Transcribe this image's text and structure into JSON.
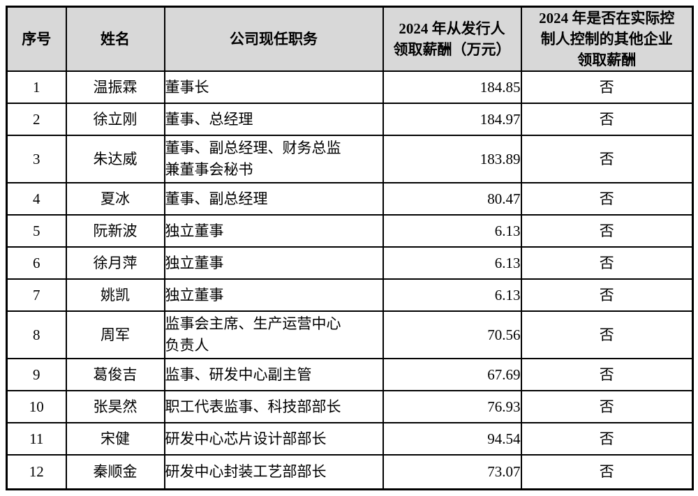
{
  "colors": {
    "header_bg": "#d8d8d8",
    "border": "#000000",
    "text": "#000000",
    "page_bg": "#ffffff"
  },
  "table": {
    "headers": {
      "no": "序号",
      "name": "姓名",
      "position": "公司现任职务",
      "salary": "2024 年从发行人\n领取薪酬（万元）",
      "other_salary": "2024 年是否在实际控\n制人控制的其他企业\n领取薪酬"
    },
    "rows": [
      {
        "no": "1",
        "name": "温振霖",
        "position": "董事长",
        "salary": "184.85",
        "other": "否"
      },
      {
        "no": "2",
        "name": "徐立刚",
        "position": "董事、总经理",
        "salary": "184.97",
        "other": "否"
      },
      {
        "no": "3",
        "name": "朱达威",
        "position": "董事、副总经理、财务总监\n兼董事会秘书",
        "salary": "183.89",
        "other": "否"
      },
      {
        "no": "4",
        "name": "夏冰",
        "position": "董事、副总经理",
        "salary": "80.47",
        "other": "否"
      },
      {
        "no": "5",
        "name": "阮新波",
        "position": "独立董事",
        "salary": "6.13",
        "other": "否"
      },
      {
        "no": "6",
        "name": "徐月萍",
        "position": "独立董事",
        "salary": "6.13",
        "other": "否"
      },
      {
        "no": "7",
        "name": "姚凯",
        "position": "独立董事",
        "salary": "6.13",
        "other": "否"
      },
      {
        "no": "8",
        "name": "周军",
        "position": "监事会主席、生产运营中心\n负责人",
        "salary": "70.56",
        "other": "否"
      },
      {
        "no": "9",
        "name": "葛俊吉",
        "position": "监事、研发中心副主管",
        "salary": "67.69",
        "other": "否"
      },
      {
        "no": "10",
        "name": "张昊然",
        "position": "职工代表监事、科技部部长",
        "salary": "76.93",
        "other": "否"
      },
      {
        "no": "11",
        "name": "宋健",
        "position": "研发中心芯片设计部部长",
        "salary": "94.54",
        "other": "否"
      },
      {
        "no": "12",
        "name": "秦顺金",
        "position": "研发中心封装工艺部部长",
        "salary": "73.07",
        "other": "否"
      }
    ]
  }
}
